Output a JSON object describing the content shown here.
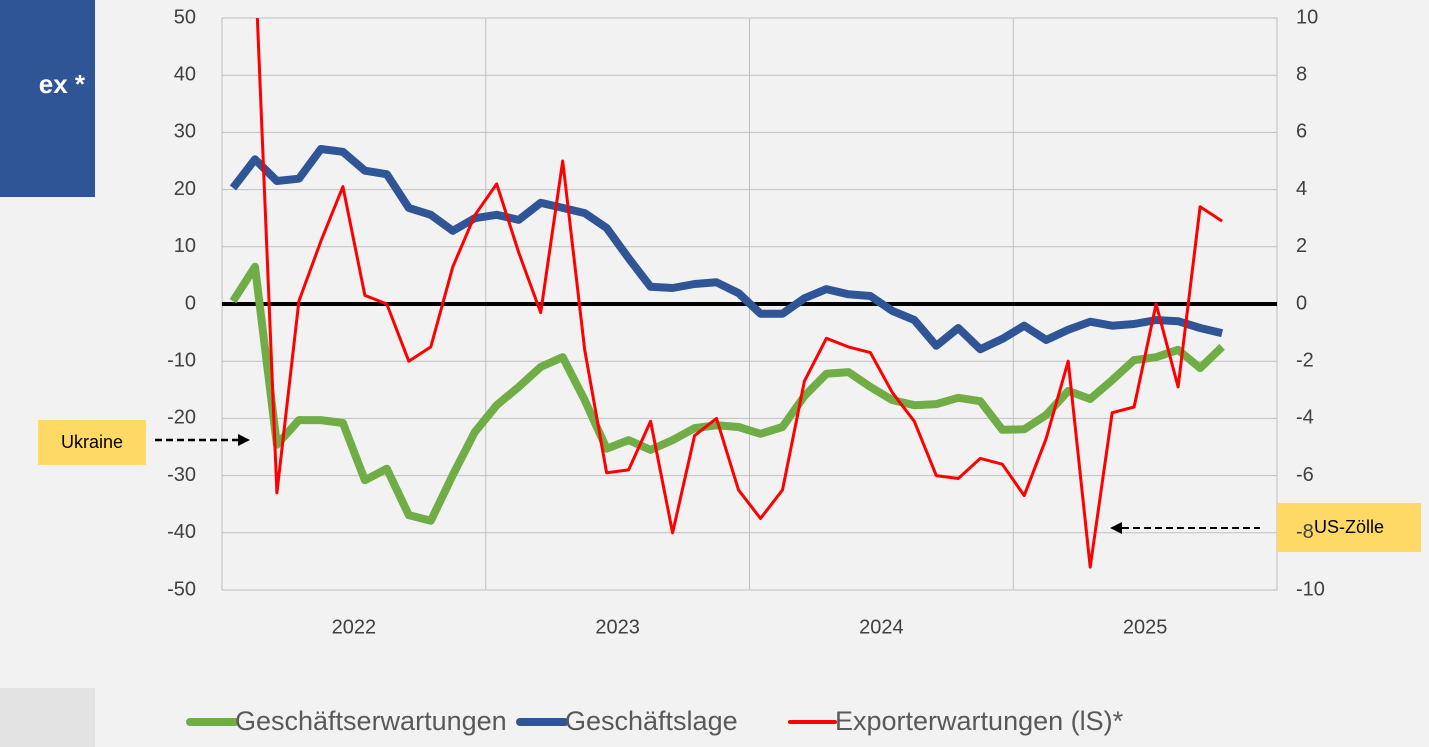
{
  "sidebar": {
    "title": "ex *"
  },
  "chart_data": {
    "type": "line",
    "categories": [
      "2022",
      null,
      null,
      null,
      null,
      null,
      null,
      null,
      null,
      null,
      null,
      null,
      "2023",
      null,
      null,
      null,
      null,
      null,
      null,
      null,
      null,
      null,
      null,
      null,
      "2024",
      null,
      null,
      null,
      null,
      null,
      null,
      null,
      null,
      null,
      null,
      null,
      "2025",
      null,
      null,
      null,
      null,
      null,
      null,
      null,
      null,
      null
    ],
    "ylim": [
      -50,
      50
    ],
    "yticks": [
      -50,
      -40,
      -30,
      -20,
      -10,
      0,
      10,
      20,
      30,
      40,
      50
    ],
    "y2lim": [
      -10,
      10
    ],
    "y2ticks": [
      -10,
      -8,
      -6,
      -4,
      -2,
      0,
      2,
      4,
      6,
      8,
      10
    ],
    "grid": true,
    "legend": "bottom",
    "series": [
      {
        "name": "Geschäftserwartungen",
        "color": "#70ad47",
        "values": [
          0.5,
          6.5,
          -24.6,
          -20.3,
          -20.3,
          -20.8,
          -30.8,
          -28.8,
          -36.9,
          -37.9,
          -29.9,
          -22.4,
          -17.7,
          -14.5,
          -11,
          -9.3,
          -16.8,
          -25.3,
          -23.8,
          -25.5,
          -23.8,
          -21.7,
          -21.2,
          -21.5,
          -22.7,
          -21.5,
          -16.1,
          -12.2,
          -11.9,
          -14.5,
          -16.8,
          -17.7,
          -17.5,
          -16.4,
          -17,
          -22,
          -21.9,
          -19.4,
          -15.2,
          -16.6,
          -13.3,
          -9.8,
          -9.3,
          -8,
          -11.2,
          -7.5
        ]
      },
      {
        "name": "Geschäftslage",
        "color": "#2f5597",
        "values": [
          20.3,
          25.3,
          21.5,
          21.9,
          27.1,
          26.6,
          23.3,
          22.7,
          16.8,
          15.6,
          12.8,
          15,
          15.6,
          14.7,
          17.7,
          16.8,
          15.9,
          13.3,
          8,
          3,
          2.8,
          3.5,
          3.8,
          1.9,
          -1.7,
          -1.7,
          1,
          2.6,
          1.7,
          1.4,
          -1.2,
          -2.8,
          -7.3,
          -4.2,
          -7.9,
          -6.1,
          -3.8,
          -6.3,
          -4.5,
          -3.1,
          -3.8,
          -3.5,
          -2.8,
          -3,
          -4.2,
          -5.1
        ]
      },
      {
        "name": "Exporterwartungen (lS)*",
        "color": "#ff0000",
        "axis": "y2",
        "values": [
          null,
          12,
          -6.6,
          0.1,
          2.2,
          4.1,
          0.3,
          0,
          -2,
          -1.5,
          1.3,
          3.1,
          4.2,
          1.8,
          -0.3,
          5,
          -1.6,
          -5.9,
          -5.8,
          -4.1,
          -8,
          -4.6,
          -4,
          -6.5,
          -7.5,
          -6.5,
          -2.7,
          -1.2,
          -1.5,
          -1.7,
          -3.1,
          -4.1,
          -6,
          -6.1,
          -5.4,
          -5.6,
          -6.7,
          -4.7,
          -2,
          -9.2,
          -3.8,
          -3.6,
          0,
          -2.9,
          3.4,
          2.9
        ]
      }
    ],
    "annotations": [
      {
        "text": "Ukraine"
      },
      {
        "text": "US-Zölle"
      }
    ]
  }
}
